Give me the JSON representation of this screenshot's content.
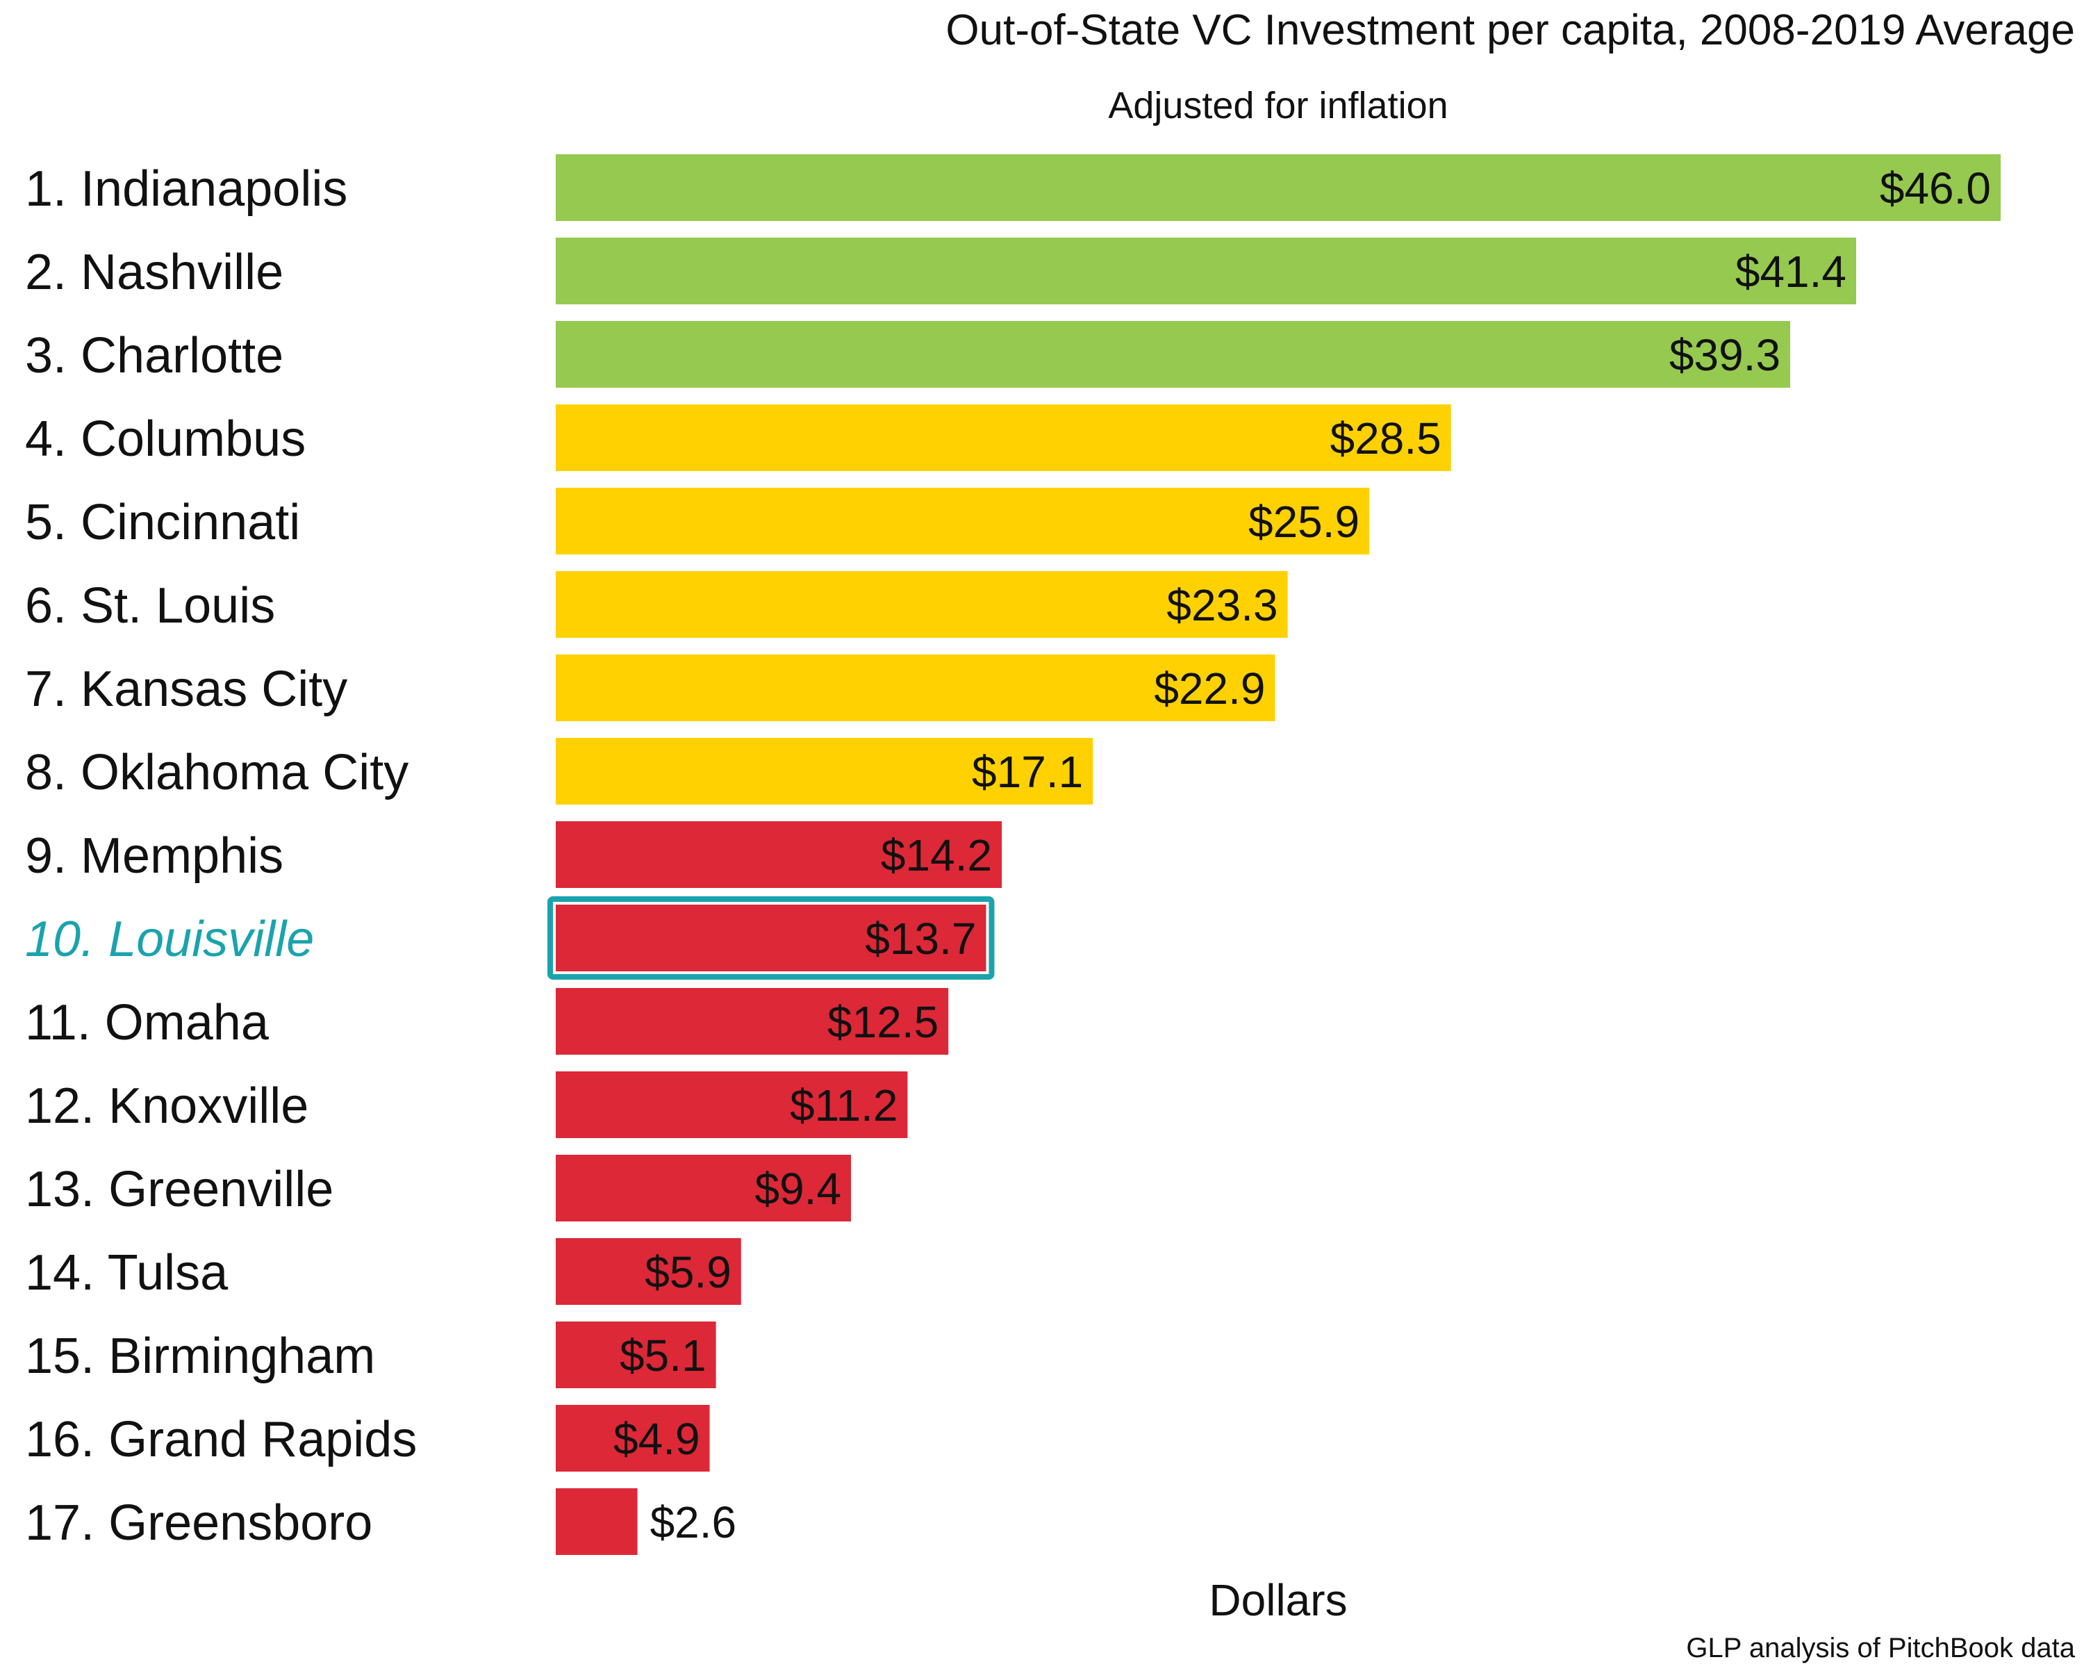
{
  "chart_data": {
    "type": "bar",
    "orientation": "horizontal",
    "title": "Out-of-State VC Investment per capita, 2008-2019 Average",
    "subtitle": "Adjusted for inflation",
    "xlabel": "Dollars",
    "ylabel": "",
    "source": "GLP analysis of PitchBook data",
    "xlim": [
      0,
      46.0
    ],
    "grid": false,
    "legend": "none",
    "value_prefix": "$",
    "highlight_color": "#1aa3ad",
    "categories": [
      "1. Indianapolis",
      "2. Nashville",
      "3. Charlotte",
      "4. Columbus",
      "5. Cincinnati",
      "6. St. Louis",
      "7. Kansas City",
      "8. Oklahoma City",
      "9. Memphis",
      "10. Louisville",
      "11. Omaha",
      "12. Knoxville",
      "13. Greenville",
      "14. Tulsa",
      "15. Birmingham",
      "16. Grand Rapids",
      "17. Greensboro"
    ],
    "values": [
      46.0,
      41.4,
      39.3,
      28.5,
      25.9,
      23.3,
      22.9,
      17.1,
      14.2,
      13.7,
      12.5,
      11.2,
      9.4,
      5.9,
      5.1,
      4.9,
      2.6
    ],
    "value_labels": [
      "$46.0",
      "$41.4",
      "$39.3",
      "$28.5",
      "$25.9",
      "$23.3",
      "$22.9",
      "$17.1",
      "$14.2",
      "$13.7",
      "$12.5",
      "$11.2",
      "$9.4",
      "$5.9",
      "$5.1",
      "$4.9",
      "$2.6"
    ],
    "colors": [
      "#96c94f",
      "#96c94f",
      "#96c94f",
      "#ffd100",
      "#ffd100",
      "#ffd100",
      "#ffd100",
      "#ffd100",
      "#dc2837",
      "#dc2837",
      "#dc2837",
      "#dc2837",
      "#dc2837",
      "#dc2837",
      "#dc2837",
      "#dc2837",
      "#dc2837"
    ],
    "highlighted": [
      false,
      false,
      false,
      false,
      false,
      false,
      false,
      false,
      false,
      true,
      false,
      false,
      false,
      false,
      false,
      false,
      false
    ]
  }
}
